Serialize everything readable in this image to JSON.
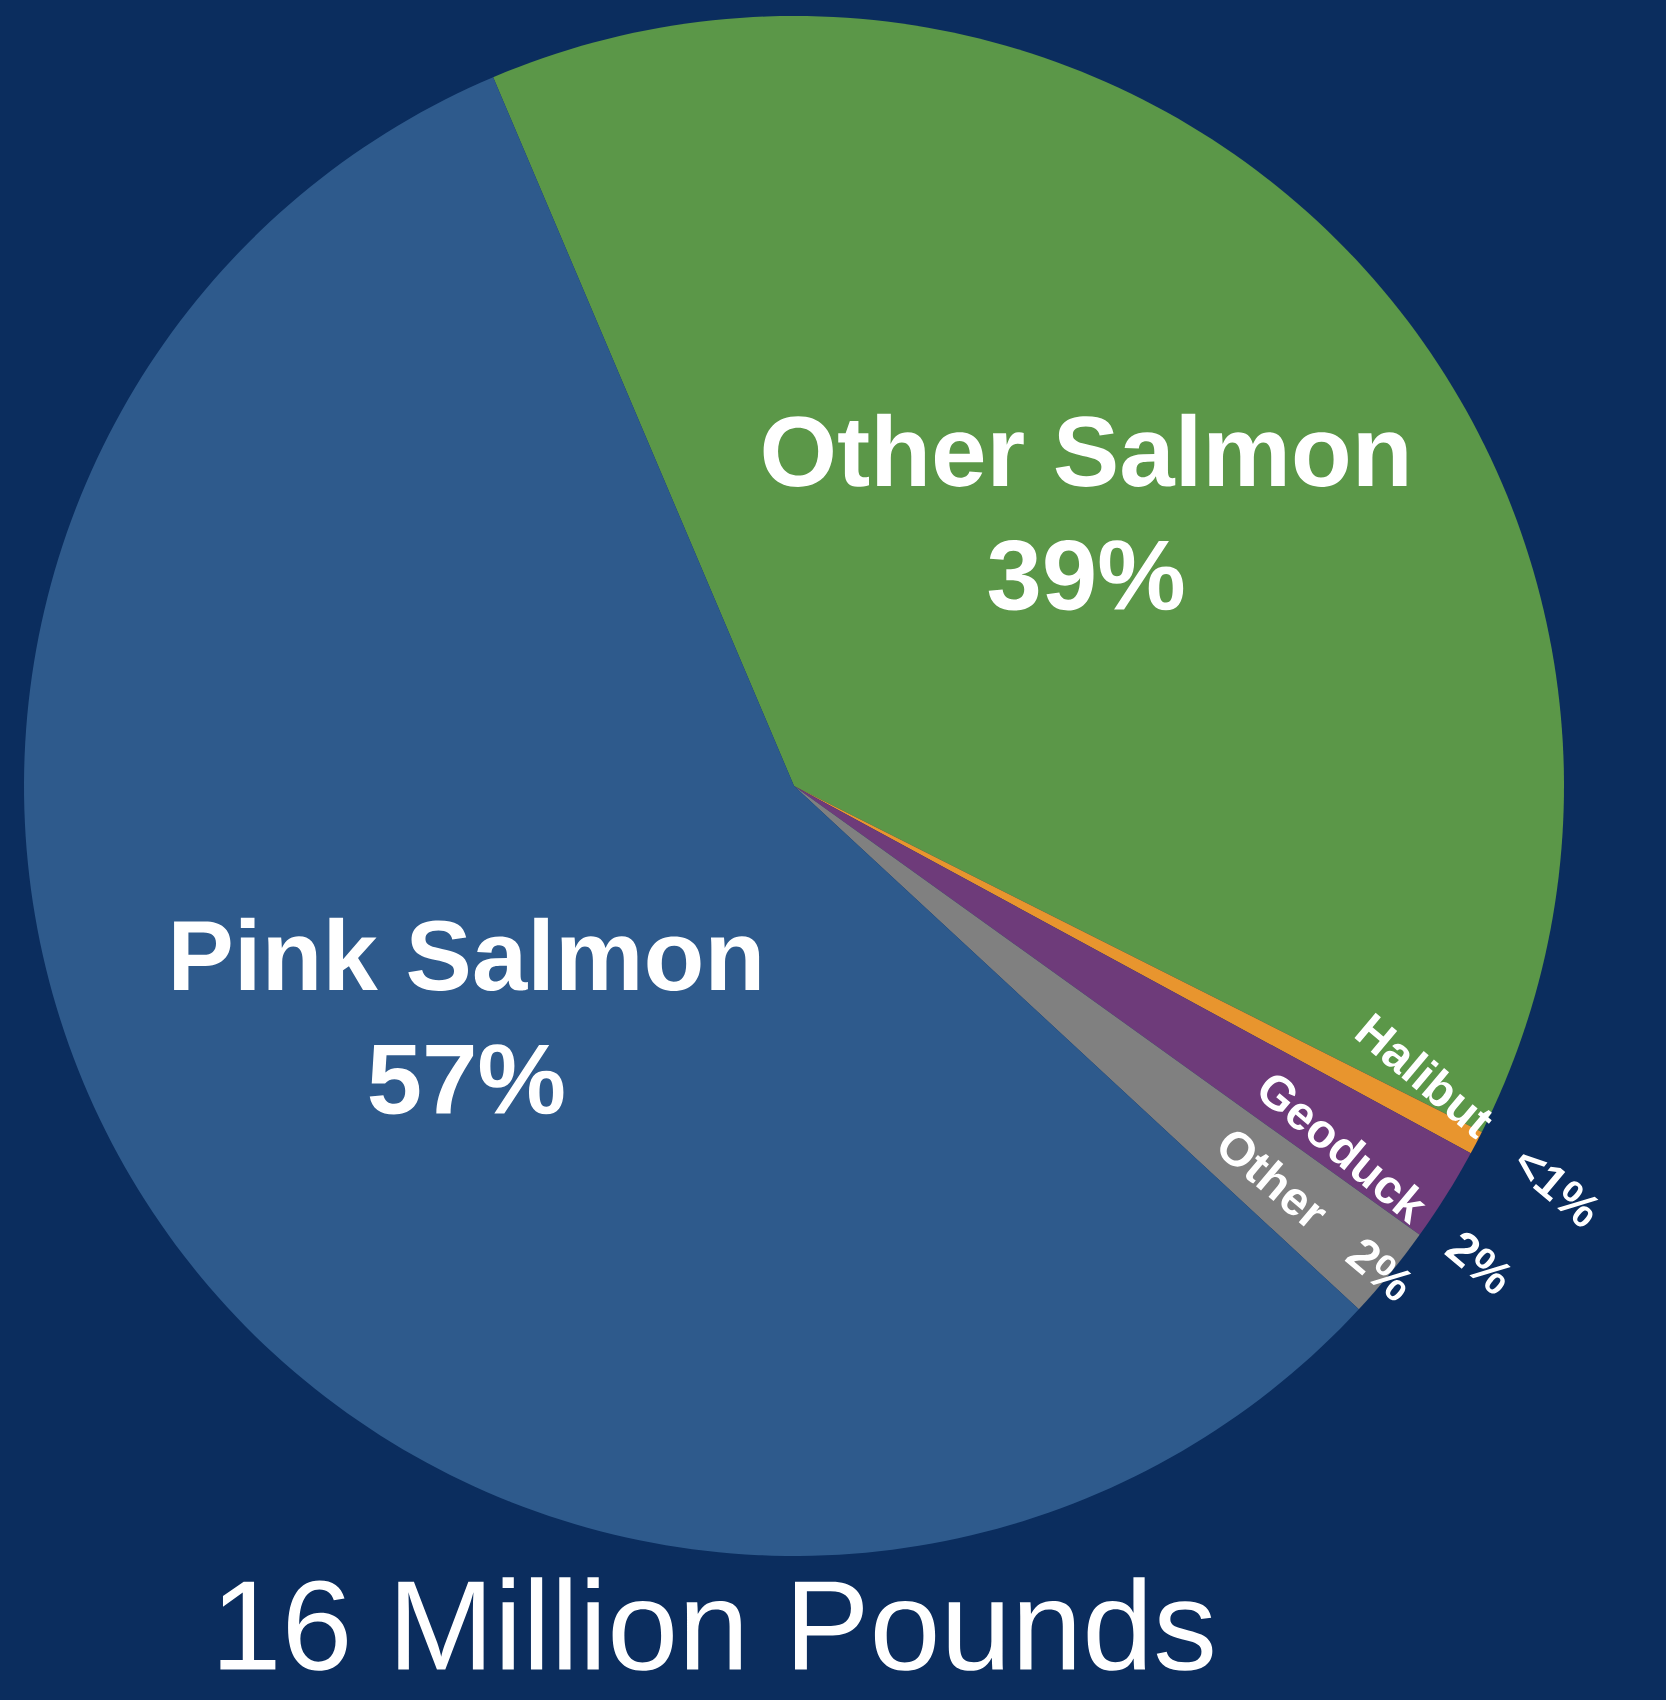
{
  "chart_data": {
    "type": "pie",
    "title": "16 Million Pounds",
    "categories": [
      "Other Salmon",
      "Halibut",
      "Geoduck",
      "Other",
      "Pink Salmon"
    ],
    "values": [
      39,
      0.5,
      2,
      2,
      57
    ],
    "value_labels": [
      "39%",
      "<1%",
      "2%",
      "2%",
      "57%"
    ],
    "colors": [
      "#5b9748",
      "#e8952e",
      "#6e3b7a",
      "#808080",
      "#2e5a8c"
    ]
  }
}
